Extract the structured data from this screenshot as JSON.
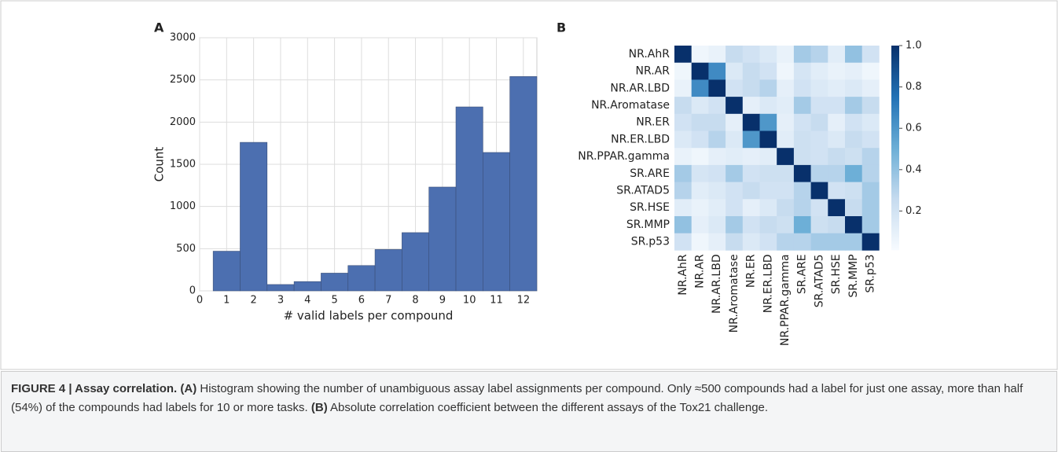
{
  "chart_data": [
    {
      "type": "histogram",
      "panel": "A",
      "x_label": "# valid labels per compound",
      "y_label": "Count",
      "bins": [
        0.5,
        1.5,
        2.5,
        3.5,
        4.5,
        5.5,
        6.5,
        7.5,
        8.5,
        9.5,
        10.5,
        11.5,
        12.5
      ],
      "values": [
        470,
        1760,
        75,
        110,
        210,
        300,
        490,
        690,
        1230,
        2180,
        1640,
        2540
      ],
      "color": "#4c6fb0",
      "xlim": [
        0,
        12.5
      ],
      "xticks": [
        0,
        1,
        2,
        3,
        4,
        5,
        6,
        7,
        8,
        9,
        10,
        11,
        12
      ],
      "ylim": [
        0,
        3000
      ],
      "yticks": [
        0,
        500,
        1000,
        1500,
        2000,
        2500,
        3000
      ],
      "grid": true
    },
    {
      "type": "heatmap",
      "panel": "B",
      "rows": [
        "NR.AhR",
        "NR.AR",
        "NR.AR.LBD",
        "NR.Aromatase",
        "NR.ER",
        "NR.ER.LBD",
        "NR.PPAR.gamma",
        "SR.ARE",
        "SR.ATAD5",
        "SR.HSE",
        "SR.MMP",
        "SR.p53"
      ],
      "columns": [
        "NR.AhR",
        "NR.AR",
        "NR.AR.LBD",
        "NR.Aromatase",
        "NR.ER",
        "NR.ER.LBD",
        "NR.PPAR.gamma",
        "SR.ARE",
        "SR.ATAD5",
        "SR.HSE",
        "SR.MMP",
        "SR.p53"
      ],
      "values": [
        [
          1,
          0.05,
          0.08,
          0.25,
          0.2,
          0.15,
          0.08,
          0.35,
          0.3,
          0.12,
          0.4,
          0.2
        ],
        [
          0.05,
          1,
          0.65,
          0.15,
          0.25,
          0.2,
          0.05,
          0.18,
          0.12,
          0.08,
          0.1,
          0.05
        ],
        [
          0.08,
          0.65,
          1,
          0.2,
          0.25,
          0.3,
          0.1,
          0.2,
          0.15,
          0.12,
          0.15,
          0.1
        ],
        [
          0.25,
          0.15,
          0.2,
          1,
          0.1,
          0.15,
          0.12,
          0.35,
          0.2,
          0.2,
          0.35,
          0.25
        ],
        [
          0.2,
          0.25,
          0.25,
          0.1,
          1,
          0.6,
          0.1,
          0.2,
          0.25,
          0.1,
          0.2,
          0.15
        ],
        [
          0.15,
          0.2,
          0.3,
          0.15,
          0.6,
          1,
          0.12,
          0.22,
          0.2,
          0.15,
          0.25,
          0.2
        ],
        [
          0.08,
          0.05,
          0.1,
          0.12,
          0.1,
          0.12,
          1,
          0.22,
          0.2,
          0.25,
          0.22,
          0.3
        ],
        [
          0.35,
          0.18,
          0.2,
          0.35,
          0.2,
          0.22,
          0.22,
          1,
          0.3,
          0.3,
          0.5,
          0.3
        ],
        [
          0.3,
          0.12,
          0.15,
          0.2,
          0.25,
          0.2,
          0.2,
          0.3,
          1,
          0.2,
          0.22,
          0.35
        ],
        [
          0.12,
          0.08,
          0.12,
          0.2,
          0.1,
          0.15,
          0.25,
          0.3,
          0.2,
          1,
          0.25,
          0.35
        ],
        [
          0.4,
          0.1,
          0.15,
          0.35,
          0.2,
          0.25,
          0.22,
          0.5,
          0.22,
          0.25,
          1,
          0.35
        ],
        [
          0.2,
          0.05,
          0.1,
          0.25,
          0.15,
          0.2,
          0.3,
          0.3,
          0.35,
          0.35,
          0.35,
          1
        ]
      ],
      "colormap": [
        "#f7fbff",
        "#c6dbef",
        "#6baed6",
        "#2171b5",
        "#08306b"
      ],
      "clim": [
        0.01,
        1
      ],
      "cticks": [
        0.2,
        0.4,
        0.6,
        0.8,
        {
          "value": 1,
          "label": "1.0"
        }
      ]
    }
  ],
  "caption": [
    {
      "text": "FIGURE 4 | Assay correlation.",
      "bold": true
    },
    {
      "text": " ",
      "bold": false
    },
    {
      "text": "(A)",
      "bold": true
    },
    {
      "text": " Histogram showing the number of unambiguous assay label assignments per compound. Only ≈500 compounds had a label for just one assay, more than half (54%) of the compounds had labels for 10 or more tasks. ",
      "bold": false
    },
    {
      "text": "(B)",
      "bold": true
    },
    {
      "text": " Absolute correlation coefficient between the different assays of the Tox21 challenge.",
      "bold": false
    }
  ]
}
